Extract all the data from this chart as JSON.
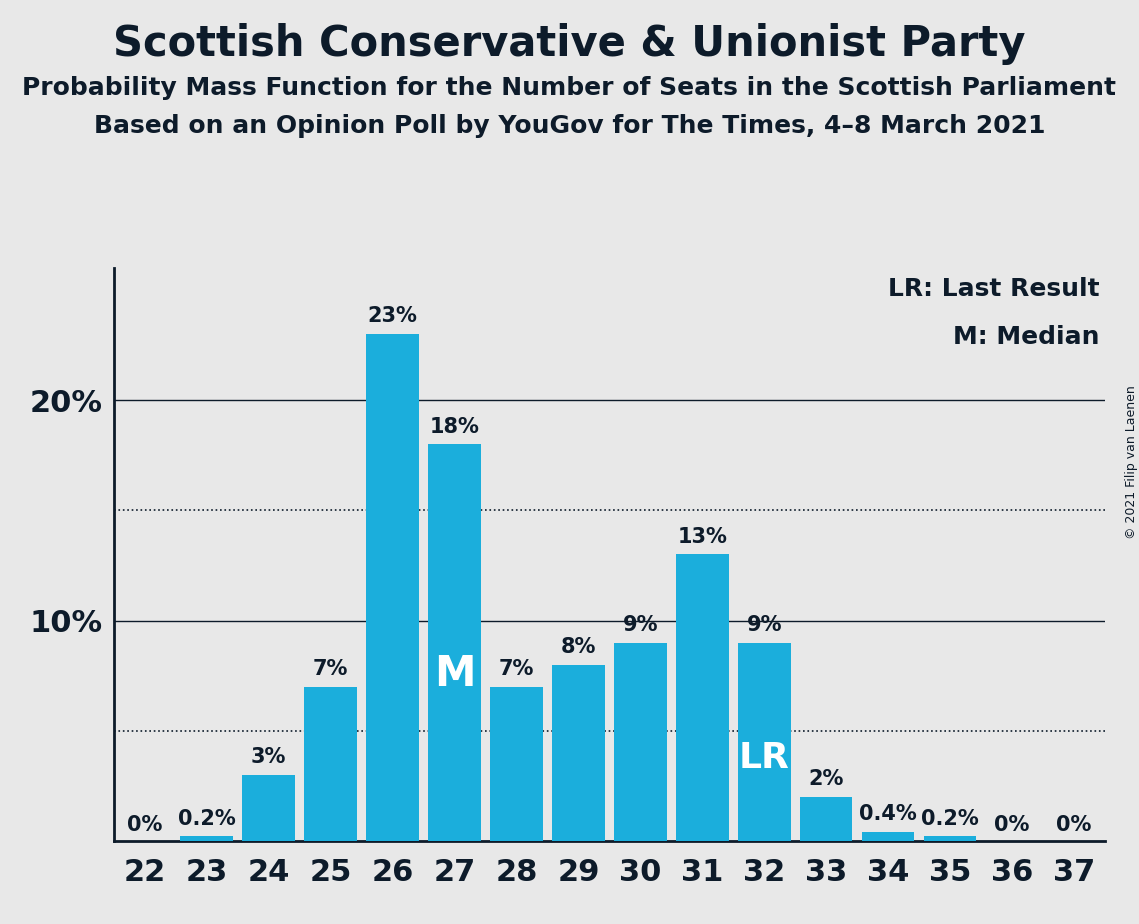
{
  "title": "Scottish Conservative & Unionist Party",
  "subtitle1": "Probability Mass Function for the Number of Seats in the Scottish Parliament",
  "subtitle2": "Based on an Opinion Poll by YouGov for The Times, 4–8 March 2021",
  "copyright": "© 2021 Filip van Laenen",
  "seats": [
    22,
    23,
    24,
    25,
    26,
    27,
    28,
    29,
    30,
    31,
    32,
    33,
    34,
    35,
    36,
    37
  ],
  "values": [
    0.0,
    0.2,
    3.0,
    7.0,
    23.0,
    18.0,
    7.0,
    8.0,
    9.0,
    13.0,
    9.0,
    2.0,
    0.4,
    0.2,
    0.0,
    0.0
  ],
  "bar_color": "#1BAEDC",
  "background_color": "#E8E8E8",
  "text_color": "#0D1B2A",
  "bar_labels": [
    "0%",
    "0.2%",
    "3%",
    "7%",
    "23%",
    "18%",
    "7%",
    "8%",
    "9%",
    "13%",
    "9%",
    "2%",
    "0.4%",
    "0.2%",
    "0%",
    "0%"
  ],
  "median_seat": 27,
  "lr_seat": 32,
  "dotted_lines": [
    5,
    15
  ],
  "ylim": [
    0,
    26
  ],
  "legend_line1": "LR: Last Result",
  "legend_line2": "M: Median",
  "title_fontsize": 30,
  "subtitle_fontsize": 18,
  "label_fontsize": 15,
  "tick_fontsize": 22,
  "ytick_fontsize": 22,
  "legend_fontsize": 18,
  "copyright_fontsize": 9,
  "m_fontsize": 30,
  "lr_fontsize": 26
}
